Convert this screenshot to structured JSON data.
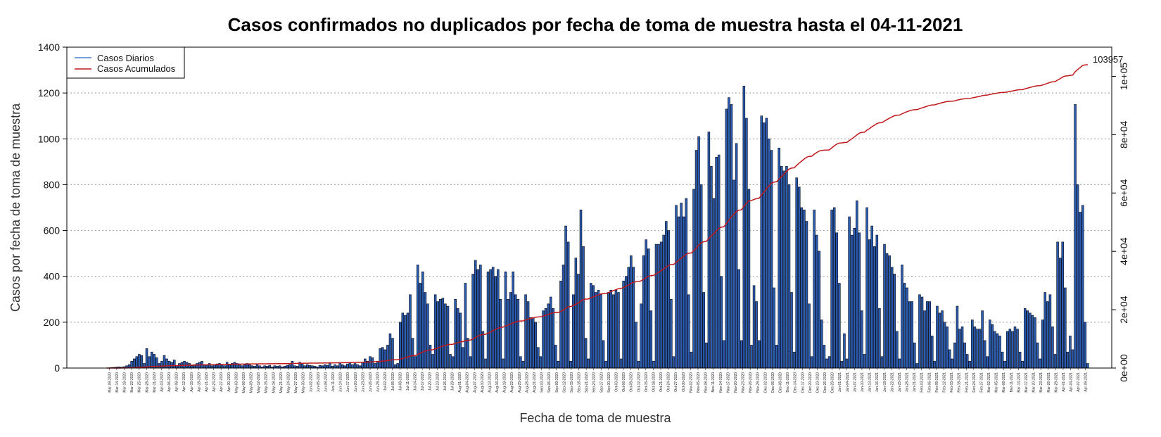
{
  "chart_data": {
    "type": "bar",
    "title": "Casos confirmados no duplicados por fecha de toma de muestra hasta el 04-11-2021",
    "xlabel": "Fecha de toma de muestra",
    "ylabel": "Casos por fecha de toma de muestra",
    "ylim": [
      0,
      1400
    ],
    "y_ticks": [
      0,
      200,
      400,
      600,
      800,
      1000,
      1200,
      1400
    ],
    "y2_ticks": [
      "0e+00",
      "2e+04",
      "4e+04",
      "6e+04",
      "8e+04",
      "1e+05"
    ],
    "y2lim": [
      0,
      110000
    ],
    "grid": "horizontal dotted",
    "legend_position": "top-left",
    "start_date": "2020-03-09",
    "x_tick_labels": [
      "Mar-09-2020",
      "Mar-14-2020",
      "Mar-19-2020",
      "Mar-22-2020",
      "Mar-25-2020",
      "Mar-28-2020",
      "Mar-31-2020",
      "Apr-03-2020",
      "Apr-06-2020",
      "Apr-09-2020",
      "Apr-12-2020",
      "Apr-15-2020",
      "Apr-18-2020",
      "Apr-21-2020",
      "Apr-24-2020",
      "Apr-27-2020",
      "Apr-30-2020",
      "May-03-2020",
      "May-06-2020",
      "May-09-2020",
      "May-12-2020",
      "May-15-2020",
      "May-18-2020",
      "May-21-2020",
      "May-24-2020",
      "May-27-2020",
      "May-30-2020",
      "Jun-02-2020",
      "Jun-05-2020",
      "Jun-08-2020",
      "Jun-11-2020",
      "Jun-14-2020",
      "Jun-17-2020",
      "Jun-20-2020",
      "Jun-23-2020",
      "Jun-26-2020",
      "Jun-29-2020",
      "Jul-02-2020",
      "Jul-05-2020",
      "Jul-08-2020",
      "Jul-11-2020",
      "Jul-14-2020",
      "Jul-17-2020",
      "Jul-20-2020",
      "Jul-23-2020",
      "Jul-26-2020",
      "Jul-29-2020",
      "Aug-01-2020",
      "Aug-04-2020",
      "Aug-07-2020",
      "Aug-10-2020",
      "Aug-13-2020",
      "Aug-16-2020",
      "Aug-19-2020",
      "Aug-22-2020",
      "Aug-25-2020",
      "Aug-28-2020",
      "Aug-31-2020",
      "Sep-03-2020",
      "Sep-06-2020",
      "Sep-09-2020",
      "Sep-12-2020",
      "Sep-15-2020",
      "Sep-18-2020",
      "Sep-21-2020",
      "Sep-24-2020",
      "Sep-27-2020",
      "Sep-30-2020",
      "Oct-03-2020",
      "Oct-06-2020",
      "Oct-09-2020",
      "Oct-12-2020",
      "Oct-15-2020",
      "Oct-18-2020",
      "Oct-21-2020",
      "Oct-24-2020",
      "Oct-27-2020",
      "Oct-30-2020",
      "Nov-02-2020",
      "Nov-05-2020",
      "Nov-08-2020",
      "Nov-11-2020",
      "Nov-14-2020",
      "Nov-17-2020",
      "Nov-20-2020",
      "Nov-23-2020",
      "Nov-26-2020",
      "Nov-29-2020",
      "Dec-02-2020",
      "Dec-05-2020",
      "Dec-08-2020",
      "Dec-11-2020",
      "Dec-14-2020",
      "Dec-17-2020",
      "Dec-20-2020",
      "Dec-23-2020",
      "Dec-26-2020",
      "Dec-29-2020",
      "Jan-01-2021",
      "Jan-04-2021",
      "Jan-07-2021",
      "Jan-10-2021",
      "Jan-13-2021",
      "Jan-16-2021",
      "Jan-19-2021",
      "Jan-22-2021",
      "Jan-25-2021",
      "Jan-28-2021",
      "Jan-31-2021",
      "Feb-03-2021",
      "Feb-06-2021",
      "Feb-09-2021",
      "Feb-12-2021",
      "Feb-15-2021",
      "Feb-18-2021",
      "Feb-21-2021",
      "Feb-24-2021",
      "Feb-27-2021",
      "Mar-02-2021",
      "Mar-05-2021",
      "Mar-08-2021",
      "Mar-11-2021",
      "Mar-14-2021",
      "Mar-17-2021",
      "Mar-20-2021",
      "Mar-23-2021",
      "Mar-26-2021",
      "Mar-29-2021",
      "Apr-01-2021",
      "Apr-04-2021",
      "Apr-07-2021",
      "Apr-09-2021"
    ],
    "series": [
      {
        "name": "Casos Diarios",
        "color": "#1f4e9e",
        "values": [
          0,
          1,
          2,
          3,
          4,
          5,
          4,
          6,
          10,
          15,
          30,
          40,
          50,
          60,
          55,
          20,
          85,
          50,
          70,
          60,
          45,
          20,
          30,
          55,
          40,
          30,
          25,
          35,
          10,
          20,
          25,
          30,
          25,
          20,
          10,
          15,
          20,
          25,
          30,
          15,
          12,
          20,
          10,
          15,
          18,
          20,
          15,
          10,
          25,
          15,
          20,
          25,
          20,
          15,
          10,
          15,
          20,
          15,
          10,
          8,
          15,
          10,
          5,
          10,
          8,
          12,
          5,
          10,
          8,
          10,
          5,
          8,
          12,
          15,
          30,
          10,
          8,
          25,
          20,
          10,
          15,
          12,
          10,
          8,
          5,
          12,
          10,
          15,
          12,
          20,
          8,
          15,
          10,
          20,
          15,
          10,
          18,
          25,
          15,
          20,
          15,
          10,
          25,
          40,
          30,
          50,
          45,
          20,
          30,
          85,
          90,
          80,
          100,
          150,
          130,
          15,
          20,
          200,
          240,
          230,
          240,
          320,
          130,
          50,
          450,
          370,
          420,
          330,
          280,
          100,
          60,
          320,
          290,
          300,
          305,
          280,
          270,
          60,
          50,
          300,
          260,
          240,
          90,
          370,
          130,
          50,
          410,
          470,
          430,
          450,
          160,
          40,
          420,
          430,
          440,
          400,
          430,
          300,
          40,
          420,
          300,
          330,
          420,
          320,
          300,
          50,
          30,
          320,
          290,
          220,
          220,
          200,
          90,
          50,
          250,
          260,
          280,
          310,
          260,
          100,
          30,
          380,
          450,
          620,
          550,
          30,
          320,
          480,
          410,
          690,
          530,
          130,
          40,
          370,
          360,
          330,
          340,
          320,
          120,
          30,
          330,
          340,
          320,
          340,
          330,
          40,
          380,
          400,
          440,
          490,
          440,
          200,
          30,
          280,
          490,
          560,
          520,
          250,
          30,
          540,
          540,
          550,
          580,
          640,
          600,
          300,
          50,
          710,
          660,
          720,
          660,
          740,
          320,
          70,
          780,
          950,
          1010,
          800,
          330,
          110,
          1030,
          880,
          740,
          920,
          930,
          400,
          120,
          1130,
          1180,
          1150,
          820,
          980,
          430,
          120,
          1230,
          1090,
          780,
          100,
          360,
          290,
          120,
          1100,
          1070,
          1090,
          1000,
          950,
          350,
          100,
          960,
          880,
          860,
          880,
          800,
          330,
          70,
          830,
          790,
          700,
          690,
          640,
          280,
          50,
          690,
          580,
          510,
          210,
          100,
          40,
          50,
          690,
          700,
          590,
          370,
          30,
          150,
          40,
          660,
          580,
          610,
          730,
          590,
          250,
          60,
          700,
          560,
          620,
          530,
          580,
          260,
          50,
          540,
          500,
          490,
          440,
          410,
          160,
          40,
          450,
          370,
          350,
          290,
          290,
          110,
          20,
          320,
          310,
          250,
          290,
          290,
          140,
          30,
          270,
          240,
          250,
          200,
          180,
          80,
          40,
          110,
          270,
          170,
          180,
          110,
          60,
          30,
          210,
          180,
          170,
          170,
          250,
          120,
          50,
          210,
          190,
          160,
          150,
          140,
          70,
          30,
          160,
          170,
          160,
          180,
          170,
          70,
          30,
          260,
          250,
          240,
          230,
          220,
          110,
          40,
          210,
          330,
          290,
          320,
          180,
          60,
          550,
          480,
          550,
          350,
          70,
          140,
          80,
          1150,
          800,
          680,
          710,
          200,
          20
        ]
      },
      {
        "name": "Casos Acumulados",
        "color": "#c0181c",
        "final_value": 103957
      }
    ],
    "annotation": "103957"
  },
  "legend": {
    "items": [
      {
        "label": "Casos Diarios",
        "color": "#4a7fd1"
      },
      {
        "label": "Casos Acumulados",
        "color": "#c0181c"
      }
    ]
  }
}
